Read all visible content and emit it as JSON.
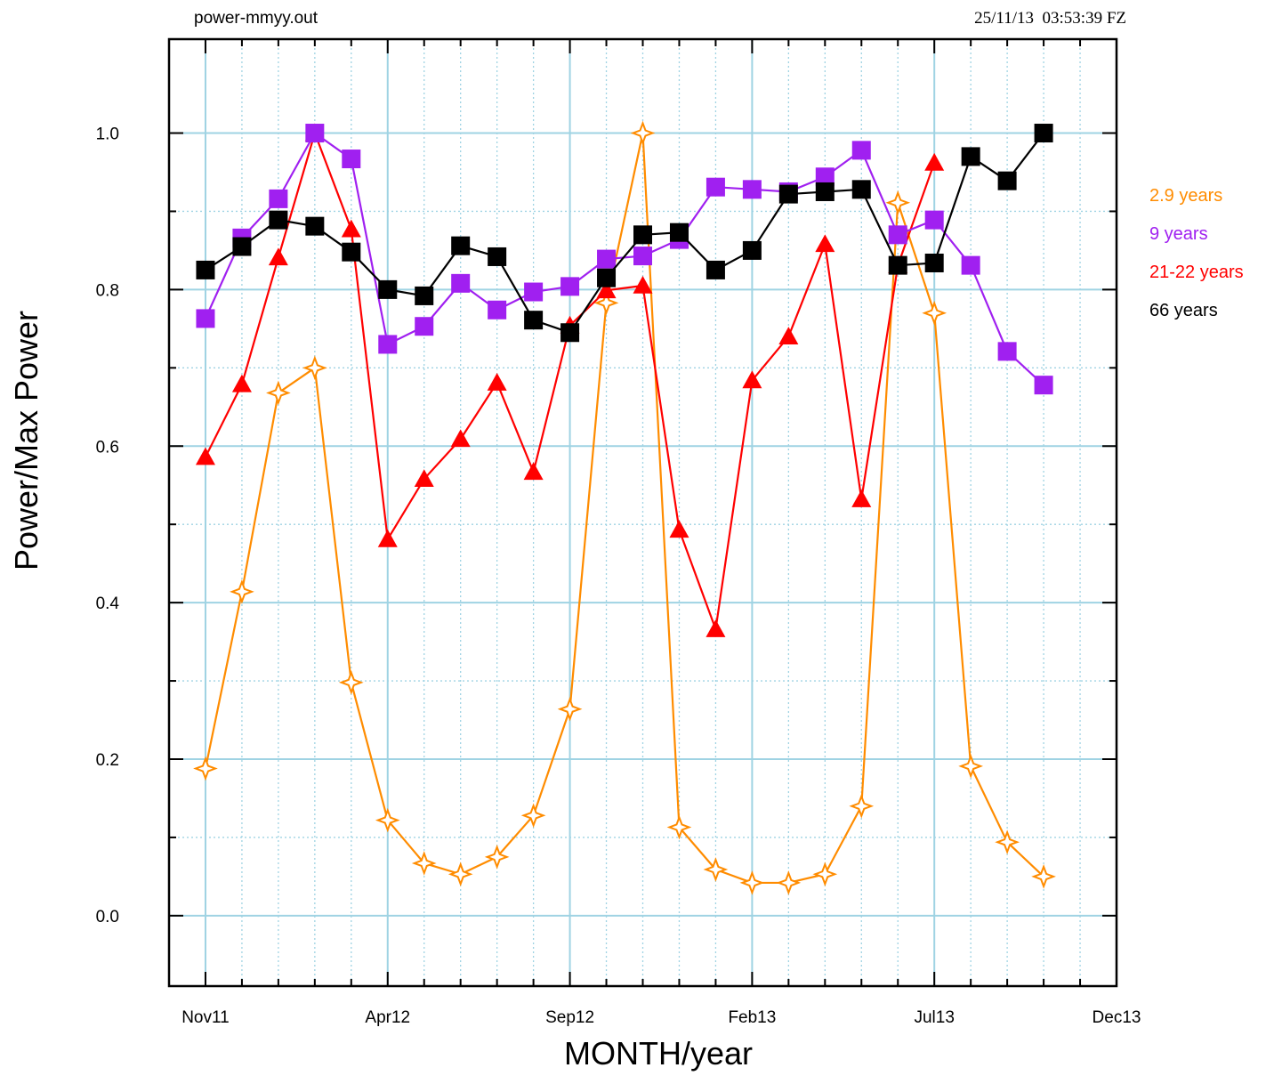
{
  "header": {
    "filename": "power-mmyy.out",
    "timestamp": "25/11/13  03:53:39 FZ"
  },
  "chart_data": {
    "type": "line",
    "title": "",
    "xlabel": "MONTH/year",
    "ylabel": "Power/Max Power",
    "ylim": [
      -0.09,
      1.12
    ],
    "xlim": [
      "2011-10",
      "2013-12"
    ],
    "x": [
      "2011-11",
      "2011-12",
      "2012-01",
      "2012-02",
      "2012-03",
      "2012-04",
      "2012-05",
      "2012-06",
      "2012-07",
      "2012-08",
      "2012-09",
      "2012-10",
      "2012-11",
      "2012-12",
      "2013-01",
      "2013-02",
      "2013-03",
      "2013-04",
      "2013-05",
      "2013-06",
      "2013-07",
      "2013-08",
      "2013-09",
      "2013-10"
    ],
    "x_tick_labels": [
      "Nov11",
      "Apr12",
      "Sep12",
      "Feb13",
      "Jul13",
      "Dec13"
    ],
    "x_tick_months": [
      "2011-11",
      "2012-04",
      "2012-09",
      "2013-02",
      "2013-07",
      "2013-12"
    ],
    "y_ticks": [
      0.0,
      0.2,
      0.4,
      0.6,
      0.8,
      1.0
    ],
    "y_tick_labels": [
      "0.0",
      "0.2",
      "0.4",
      "0.6",
      "0.8",
      "1.0"
    ],
    "grid": true,
    "legend_position": "right",
    "series": [
      {
        "name": "2.9 years",
        "color": "#ff8c00",
        "marker": "star",
        "values": [
          0.188,
          0.414,
          0.668,
          0.7,
          0.298,
          0.122,
          0.067,
          0.053,
          0.075,
          0.128,
          0.264,
          0.783,
          1.0,
          0.113,
          0.059,
          0.042,
          0.042,
          0.053,
          0.14,
          0.911,
          0.77,
          0.191,
          0.094,
          0.05
        ]
      },
      {
        "name": "9 years",
        "color": "#a020f0",
        "marker": "square",
        "values": [
          0.763,
          0.866,
          0.916,
          1.0,
          0.967,
          0.73,
          0.753,
          0.808,
          0.774,
          0.797,
          0.804,
          0.839,
          0.843,
          0.864,
          0.931,
          0.928,
          0.925,
          0.944,
          0.978,
          0.87,
          0.889,
          0.831,
          0.721,
          0.678
        ]
      },
      {
        "name": "21-22 years",
        "color": "#ff0000",
        "marker": "triangle",
        "values": [
          0.586,
          0.679,
          0.841,
          1.0,
          0.877,
          0.481,
          0.558,
          0.609,
          0.681,
          0.567,
          0.754,
          0.799,
          0.805,
          0.493,
          0.366,
          0.684,
          0.74,
          0.858,
          0.532,
          0.831,
          0.962,
          null,
          null,
          null
        ]
      },
      {
        "name": "66 years",
        "color": "#000000",
        "marker": "square",
        "values": [
          0.825,
          0.855,
          0.889,
          0.881,
          0.848,
          0.8,
          0.792,
          0.856,
          0.842,
          0.761,
          0.745,
          0.815,
          0.87,
          0.873,
          0.825,
          0.85,
          0.922,
          0.925,
          0.928,
          0.831,
          0.834,
          0.97,
          0.939,
          1.0
        ]
      }
    ]
  }
}
